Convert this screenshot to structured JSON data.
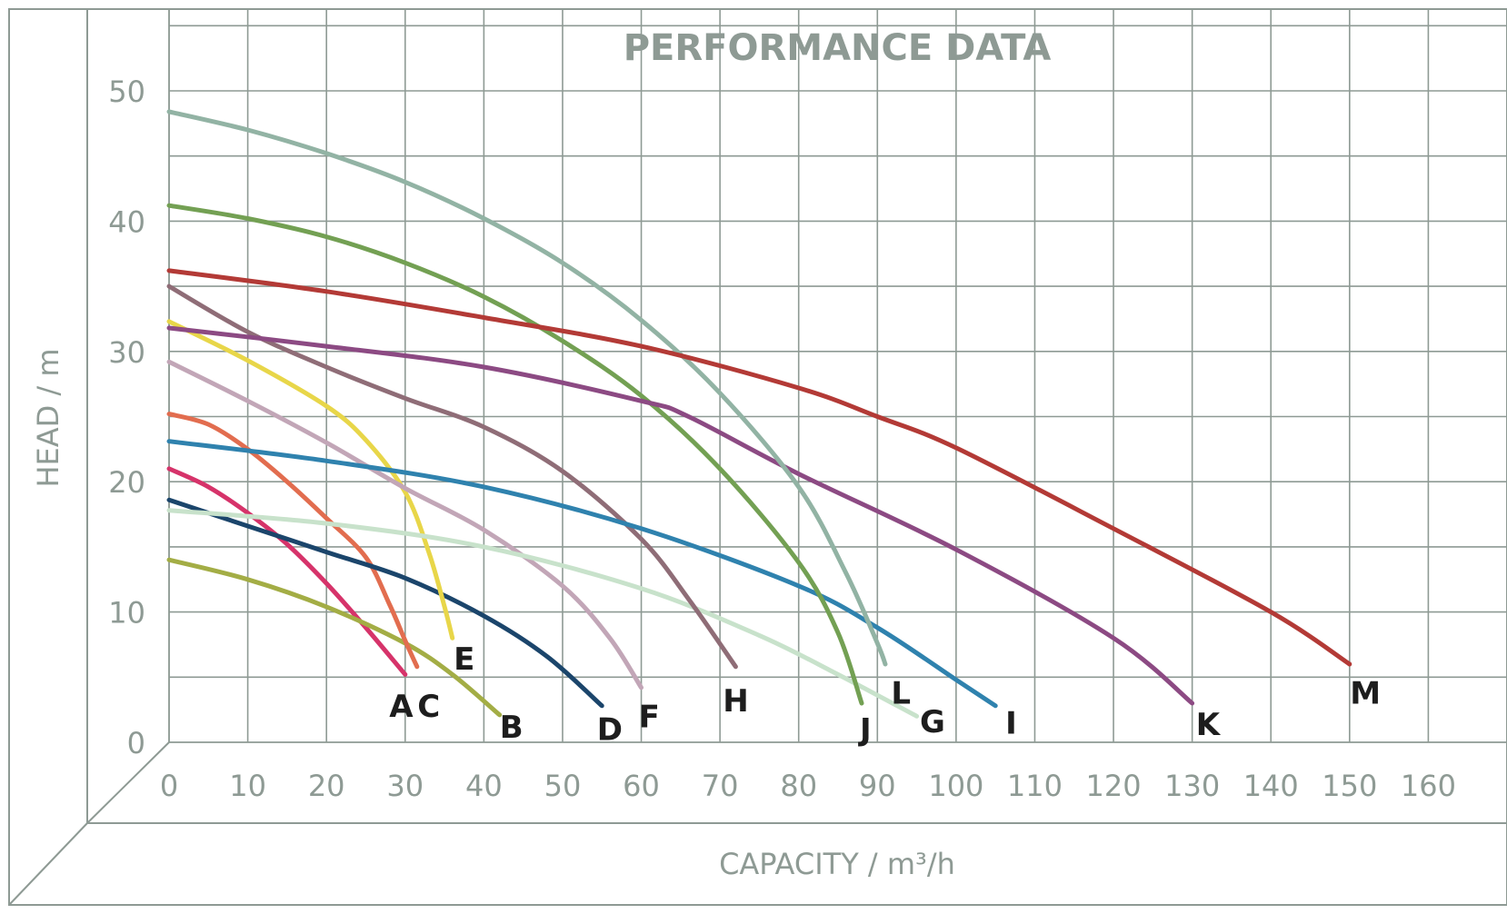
{
  "chart_data": {
    "type": "line",
    "title": "PERFORMANCE DATA",
    "xlabel": "CAPACITY / m³/h",
    "ylabel": "HEAD / m",
    "xlim": [
      0,
      170
    ],
    "ylim": [
      0,
      50
    ],
    "x_ticks": [
      0,
      10,
      20,
      30,
      40,
      50,
      60,
      70,
      80,
      90,
      100,
      110,
      120,
      130,
      140,
      150,
      160
    ],
    "y_ticks": [
      0,
      10,
      20,
      30,
      40,
      50
    ],
    "grid": true,
    "legend": "none",
    "series": [
      {
        "name": "A",
        "color": "#d6336a",
        "points": [
          [
            0,
            21
          ],
          [
            5,
            19.6
          ],
          [
            10,
            17.6
          ],
          [
            15,
            15.2
          ],
          [
            20,
            12.2
          ],
          [
            25,
            8.8
          ],
          [
            30,
            5.2
          ]
        ],
        "label_at": [
          29.5,
          2.8
        ]
      },
      {
        "name": "B",
        "color": "#a3ad45",
        "points": [
          [
            0,
            14
          ],
          [
            10,
            12.5
          ],
          [
            20,
            10.4
          ],
          [
            30,
            7.6
          ],
          [
            36,
            5.2
          ],
          [
            42,
            2.1
          ]
        ],
        "label_at": [
          43.5,
          1.2
        ]
      },
      {
        "name": "C",
        "color": "#e26d4f",
        "points": [
          [
            0,
            25.2
          ],
          [
            5,
            24.4
          ],
          [
            10,
            22.5
          ],
          [
            15,
            20
          ],
          [
            20,
            17.2
          ],
          [
            25,
            14.2
          ],
          [
            28,
            10.6
          ],
          [
            30,
            7.8
          ],
          [
            31.5,
            5.8
          ]
        ],
        "label_at": [
          33,
          2.8
        ]
      },
      {
        "name": "D",
        "color": "#1b456b",
        "points": [
          [
            0,
            18.6
          ],
          [
            10,
            16.6
          ],
          [
            20,
            14.6
          ],
          [
            30,
            12.6
          ],
          [
            40,
            9.7
          ],
          [
            48,
            6.6
          ],
          [
            55,
            2.8
          ]
        ],
        "label_at": [
          56,
          1.0
        ]
      },
      {
        "name": "E",
        "color": "#e8d649",
        "points": [
          [
            0,
            32.3
          ],
          [
            10,
            29.3
          ],
          [
            20,
            25.8
          ],
          [
            25,
            23.2
          ],
          [
            30,
            19.2
          ],
          [
            33,
            14.6
          ],
          [
            35,
            10.4
          ],
          [
            36,
            8
          ]
        ],
        "label_at": [
          37.5,
          6.4
        ]
      },
      {
        "name": "F",
        "color": "#c2a6b7",
        "points": [
          [
            0,
            29.2
          ],
          [
            10,
            26.2
          ],
          [
            20,
            23
          ],
          [
            30,
            19.5
          ],
          [
            40,
            16.3
          ],
          [
            50,
            12
          ],
          [
            56,
            8
          ],
          [
            60,
            4.2
          ]
        ],
        "label_at": [
          61,
          2.0
        ]
      },
      {
        "name": "G",
        "color": "#c8e2cb",
        "points": [
          [
            0,
            17.8
          ],
          [
            20,
            16.8
          ],
          [
            40,
            15
          ],
          [
            60,
            11.8
          ],
          [
            75,
            8.2
          ],
          [
            85,
            5.2
          ],
          [
            95,
            2
          ]
        ],
        "label_at": [
          97,
          1.6
        ]
      },
      {
        "name": "H",
        "color": "#8f6d77",
        "points": [
          [
            0,
            35
          ],
          [
            10,
            31.5
          ],
          [
            20,
            28.8
          ],
          [
            30,
            26.4
          ],
          [
            40,
            24.2
          ],
          [
            50,
            20.8
          ],
          [
            60,
            15.6
          ],
          [
            66,
            11
          ],
          [
            72,
            5.8
          ]
        ],
        "label_at": [
          72,
          3.2
        ]
      },
      {
        "name": "I",
        "color": "#2f82ae",
        "points": [
          [
            0,
            23.1
          ],
          [
            20,
            21.6
          ],
          [
            40,
            19.6
          ],
          [
            60,
            16.4
          ],
          [
            80,
            12
          ],
          [
            90,
            8.8
          ],
          [
            100,
            4.8
          ],
          [
            105,
            2.8
          ]
        ],
        "label_at": [
          107,
          1.5
        ]
      },
      {
        "name": "J",
        "color": "#73a053",
        "points": [
          [
            0,
            41.2
          ],
          [
            10,
            40.2
          ],
          [
            20,
            38.8
          ],
          [
            30,
            36.8
          ],
          [
            40,
            34.2
          ],
          [
            50,
            30.8
          ],
          [
            60,
            26.6
          ],
          [
            70,
            21
          ],
          [
            80,
            13.8
          ],
          [
            85,
            8.4
          ],
          [
            88,
            3
          ]
        ],
        "label_at": [
          88.5,
          1.0
        ]
      },
      {
        "name": "K",
        "color": "#8c4a83",
        "points": [
          [
            0,
            31.8
          ],
          [
            20,
            30.4
          ],
          [
            40,
            28.8
          ],
          [
            60,
            26.2
          ],
          [
            66,
            25
          ],
          [
            80,
            20.6
          ],
          [
            100,
            14.8
          ],
          [
            120,
            8
          ],
          [
            130,
            3
          ]
        ],
        "label_at": [
          132,
          1.4
        ]
      },
      {
        "name": "L",
        "color": "#92b3a4",
        "points": [
          [
            0,
            48.4
          ],
          [
            10,
            47
          ],
          [
            20,
            45.2
          ],
          [
            30,
            43
          ],
          [
            40,
            40.2
          ],
          [
            50,
            36.8
          ],
          [
            60,
            32.4
          ],
          [
            70,
            26.8
          ],
          [
            80,
            19.6
          ],
          [
            86,
            13
          ],
          [
            90,
            7.6
          ],
          [
            91,
            6
          ]
        ],
        "label_at": [
          93,
          3.8
        ]
      },
      {
        "name": "M",
        "color": "#b33a36",
        "points": [
          [
            0,
            36.2
          ],
          [
            20,
            34.6
          ],
          [
            40,
            32.6
          ],
          [
            60,
            30.4
          ],
          [
            80,
            27.2
          ],
          [
            90,
            25
          ],
          [
            100,
            22.6
          ],
          [
            120,
            16.4
          ],
          [
            140,
            10
          ],
          [
            150,
            6
          ]
        ],
        "label_at": [
          152,
          3.8
        ]
      }
    ]
  }
}
